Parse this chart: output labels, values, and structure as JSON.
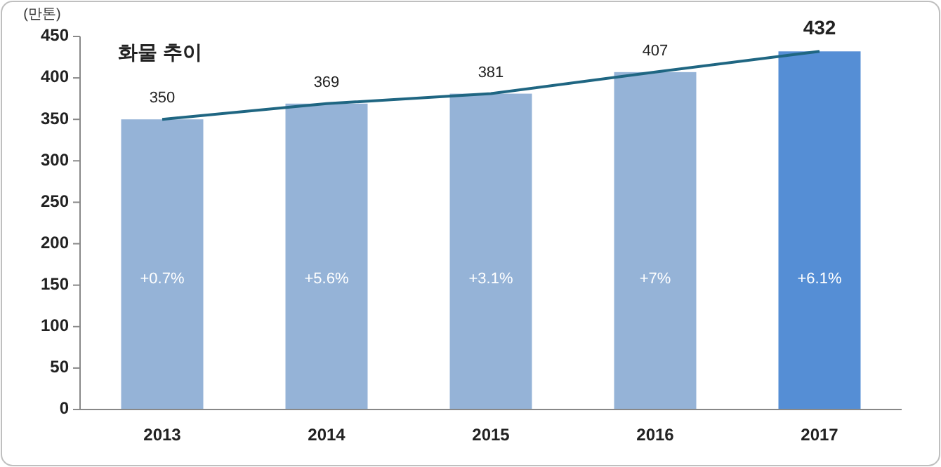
{
  "chart_data": {
    "type": "bar",
    "title": "화물 추이",
    "ylabel": "(만톤)",
    "categories": [
      "2013",
      "2014",
      "2015",
      "2016",
      "2017"
    ],
    "series": [
      {
        "colors": [
          "#95b3d7",
          "#95b3d7",
          "#95b3d7",
          "#95b3d7",
          "#558ed5"
        ],
        "values": [
          350,
          369,
          381,
          407,
          432
        ],
        "value_labels": [
          "350",
          "369",
          "381",
          "407",
          "432"
        ]
      },
      {
        "type": "line",
        "color": "#1f6682",
        "values": [
          350,
          369,
          381,
          407,
          432
        ]
      }
    ],
    "ylim": [
      0,
      450
    ],
    "yticks": [
      0,
      50,
      100,
      150,
      200,
      250,
      300,
      350,
      400,
      450
    ],
    "grid": false,
    "marker": "none",
    "line_style": "solid",
    "annotations": [
      "+0.7%",
      "+5.6%",
      "+3.1%",
      "+7%",
      "+6.1%"
    ]
  }
}
